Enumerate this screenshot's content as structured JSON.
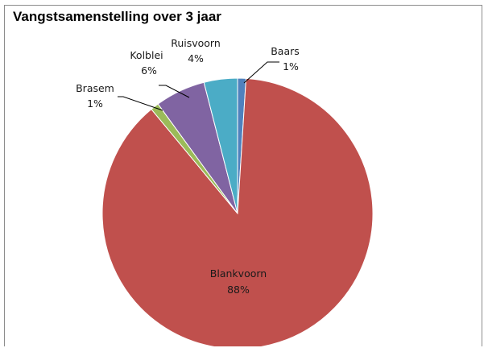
{
  "chart_data": {
    "type": "pie",
    "title": "Vangstsamenstelling over 3 jaar",
    "legend": "none",
    "slices": [
      {
        "label": "Baars",
        "value": 1,
        "display": "1%",
        "color": "#4f81bd"
      },
      {
        "label": "Blankvoorn",
        "value": 88,
        "display": "88%",
        "color": "#c0504d"
      },
      {
        "label": "Brasem",
        "value": 1,
        "display": "1%",
        "color": "#9bbb59"
      },
      {
        "label": "Kolblei",
        "value": 6,
        "display": "6%",
        "color": "#8064a2"
      },
      {
        "label": "Ruisvoorn",
        "value": 4,
        "display": "4%",
        "color": "#4bacc6"
      }
    ]
  }
}
